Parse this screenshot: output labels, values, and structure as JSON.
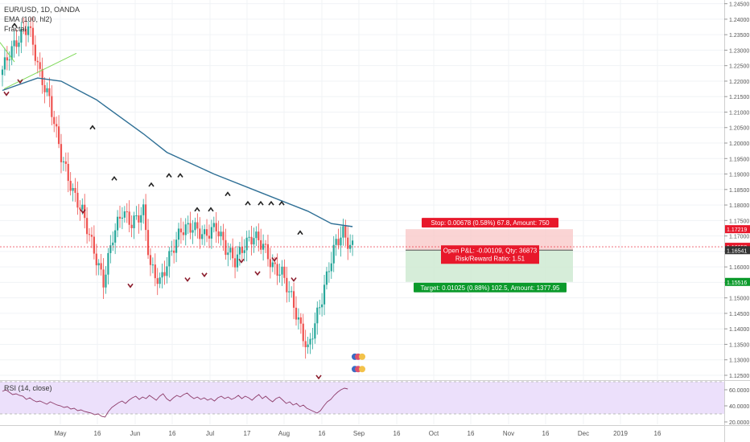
{
  "header": {
    "symbol": "EUR/USD, 1D, OANDA",
    "indicator_ema": "EMA (100, hl2)",
    "indicator_fractal": "Fractal"
  },
  "rsi_label": "RSI (14, close)",
  "colors": {
    "up": "#26a69a",
    "down": "#ef5350",
    "ema": "#2e6f95",
    "trendline": "#7ed957",
    "rsi": "#8e3d6b",
    "rsi_band": "#ece0fb",
    "stop_zone": "#f9c9c9",
    "target_zone": "#cfead2",
    "stop_label": "#e8182b",
    "target_label": "#0b9a2b"
  },
  "chart_data": {
    "type": "candlestick",
    "y_ticks": [
      "1.24500",
      "1.24000",
      "1.23500",
      "1.23000",
      "1.22500",
      "1.22000",
      "1.21500",
      "1.21000",
      "1.20500",
      "1.20000",
      "1.19500",
      "1.19000",
      "1.18500",
      "1.18000",
      "1.17500",
      "1.17000",
      "1.16500",
      "1.16000",
      "1.15500",
      "1.15000",
      "1.14500",
      "1.14000",
      "1.13500",
      "1.13000",
      "1.12500"
    ],
    "y_range": [
      1.1237,
      1.2462
    ],
    "x_labels": [
      "May",
      "16",
      "Jun",
      "16",
      "Jul",
      "17",
      "Aug",
      "16",
      "Sep",
      "16",
      "Oct",
      "16",
      "Nov",
      "16",
      "Dec",
      "2019",
      "16"
    ],
    "price_labels": [
      {
        "text": "1.17219",
        "value": 1.17219,
        "color": "#e8182b"
      },
      {
        "text": "1.16650",
        "value": 1.1665,
        "color": "#e8182b"
      },
      {
        "text": "1.16541",
        "value": 1.16541,
        "color": "#333333"
      },
      {
        "text": "1.15516",
        "value": 1.15516,
        "color": "#0b9a2b"
      }
    ],
    "current_price": 1.1665,
    "position": {
      "stop_price": 1.17219,
      "entry_price": 1.16541,
      "target_price": 1.15516,
      "stop_text": "Stop: 0.00678 (0.58%) 67.8, Amount: 750",
      "pnl_text": "Open P&L: -0.00109, Qty: 36873",
      "rr_text": "Risk/Reward Ratio: 1.51",
      "target_text": "Target: 0.01025 (0.88%) 102.5, Amount: 1377.95"
    },
    "rsi": {
      "y_ticks": [
        "60.0000",
        "40.0000",
        "20.0000"
      ],
      "y_range": [
        17,
        70
      ],
      "upper_band": 70,
      "lower_band": 30,
      "values": [
        58,
        60,
        57,
        54,
        55,
        53,
        52,
        48,
        50,
        47,
        45,
        46,
        44,
        42,
        45,
        43,
        41,
        40,
        38,
        39,
        36,
        37,
        34,
        35,
        33,
        32,
        31,
        29,
        30,
        27,
        26,
        33,
        38,
        41,
        44,
        46,
        43,
        47,
        50,
        52,
        48,
        51,
        49,
        53,
        50,
        47,
        52,
        55,
        49,
        46,
        50,
        53,
        51,
        54,
        56,
        52,
        49,
        51,
        48,
        50,
        47,
        49,
        46,
        50,
        52,
        49,
        51,
        48,
        50,
        53,
        49,
        52,
        50,
        47,
        51,
        54,
        49,
        52,
        48,
        45,
        49,
        51,
        47,
        43,
        45,
        41,
        43,
        39,
        41,
        37,
        35,
        33,
        31,
        34,
        40,
        45,
        48,
        53,
        57,
        60,
        62,
        61
      ]
    }
  }
}
